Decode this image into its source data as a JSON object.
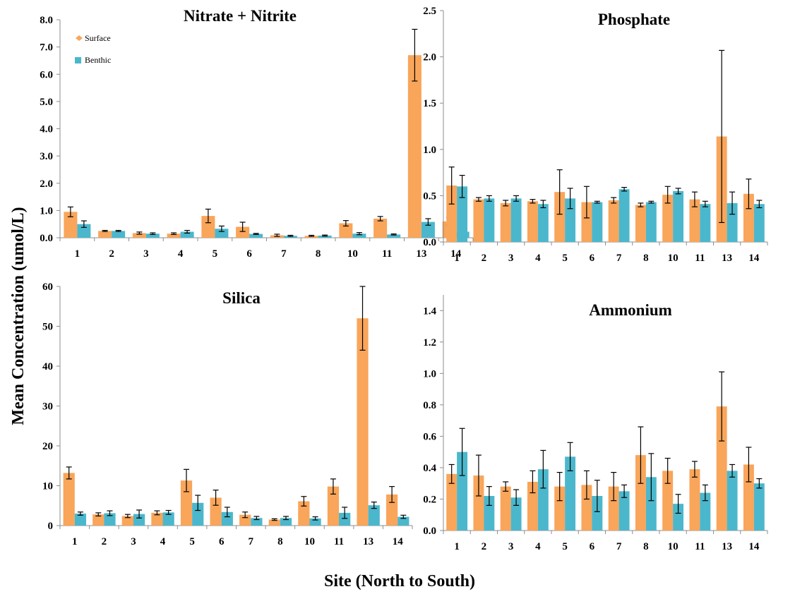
{
  "figure": {
    "ylabel": "Mean Concentration (umol/L)",
    "xlabel": "Site (North to South)"
  },
  "legend": {
    "items": [
      {
        "name": "Surface",
        "color": "#F9A55A",
        "marker": "diamond"
      },
      {
        "name": "Benthic",
        "color": "#4BB7CC",
        "marker": "square"
      }
    ]
  },
  "chart_data": [
    {
      "type": "bar",
      "title": "Nitrate + Nitrite",
      "categories": [
        "1",
        "2",
        "3",
        "4",
        "5",
        "6",
        "7",
        "8",
        "10",
        "11",
        "13",
        "14"
      ],
      "ylim": [
        0,
        8
      ],
      "yticks": [
        "0.0",
        "1.0",
        "2.0",
        "3.0",
        "4.0",
        "5.0",
        "6.0",
        "7.0",
        "8.0"
      ],
      "ytick_values": [
        0,
        1,
        2,
        3,
        4,
        5,
        6,
        7,
        8
      ],
      "legend": "top-left",
      "series": [
        {
          "name": "Surface",
          "color": "#F9A55A",
          "values": [
            0.95,
            0.25,
            0.17,
            0.15,
            0.8,
            0.4,
            0.09,
            0.07,
            0.53,
            0.7,
            6.7,
            0.6
          ],
          "errors": [
            0.18,
            0.02,
            0.04,
            0.03,
            0.25,
            0.17,
            0.04,
            0.02,
            0.1,
            0.08,
            0.95,
            0.14
          ]
        },
        {
          "name": "Benthic",
          "color": "#4BB7CC",
          "values": [
            0.5,
            0.25,
            0.15,
            0.22,
            0.33,
            0.14,
            0.07,
            0.08,
            0.15,
            0.12,
            0.58,
            0.22
          ],
          "errors": [
            0.12,
            0.02,
            0.03,
            0.05,
            0.1,
            0.02,
            0.02,
            0.02,
            0.04,
            0.02,
            0.12,
            0.05
          ]
        }
      ]
    },
    {
      "type": "bar",
      "title": "Phosphate",
      "categories": [
        "1",
        "2",
        "3",
        "4",
        "5",
        "6",
        "7",
        "8",
        "10",
        "11",
        "13",
        "14"
      ],
      "ylim": [
        0,
        2.5
      ],
      "yticks": [
        "0.0",
        "0.5",
        "1.0",
        "1.5",
        "2.0",
        "2.5"
      ],
      "ytick_values": [
        0,
        0.5,
        1.0,
        1.5,
        2.0,
        2.5
      ],
      "series": [
        {
          "name": "Surface",
          "color": "#F9A55A",
          "values": [
            0.61,
            0.46,
            0.42,
            0.44,
            0.54,
            0.43,
            0.45,
            0.4,
            0.51,
            0.46,
            1.14,
            0.52
          ],
          "errors": [
            0.2,
            0.02,
            0.03,
            0.02,
            0.24,
            0.17,
            0.03,
            0.02,
            0.09,
            0.08,
            0.93,
            0.16
          ]
        },
        {
          "name": "Benthic",
          "color": "#4BB7CC",
          "values": [
            0.6,
            0.47,
            0.47,
            0.41,
            0.47,
            0.43,
            0.57,
            0.43,
            0.55,
            0.41,
            0.42,
            0.41
          ],
          "errors": [
            0.12,
            0.03,
            0.03,
            0.04,
            0.11,
            0.01,
            0.02,
            0.01,
            0.03,
            0.03,
            0.12,
            0.04
          ]
        }
      ]
    },
    {
      "type": "bar",
      "title": "Silica",
      "categories": [
        "1",
        "2",
        "3",
        "4",
        "5",
        "6",
        "7",
        "8",
        "10",
        "11",
        "13",
        "14"
      ],
      "ylim": [
        0,
        60
      ],
      "yticks": [
        "0",
        "10",
        "20",
        "30",
        "40",
        "50",
        "60"
      ],
      "ytick_values": [
        0,
        10,
        20,
        30,
        40,
        50,
        60
      ],
      "series": [
        {
          "name": "Surface",
          "color": "#F9A55A",
          "values": [
            13.2,
            2.8,
            2.4,
            3.2,
            11.3,
            7.0,
            2.7,
            1.5,
            6.1,
            9.8,
            52.0,
            7.8
          ],
          "errors": [
            1.5,
            0.4,
            0.4,
            0.5,
            2.8,
            1.9,
            0.7,
            0.2,
            1.2,
            1.9,
            8.0,
            2.0
          ]
        },
        {
          "name": "Benthic",
          "color": "#4BB7CC",
          "values": [
            3.0,
            3.1,
            2.9,
            3.3,
            5.7,
            3.4,
            1.9,
            1.9,
            1.8,
            3.2,
            5.1,
            2.2
          ],
          "errors": [
            0.4,
            0.6,
            1.0,
            0.5,
            1.9,
            1.2,
            0.4,
            0.4,
            0.4,
            1.4,
            0.8,
            0.4
          ]
        }
      ]
    },
    {
      "type": "bar",
      "title": "Ammonium",
      "categories": [
        "1",
        "2",
        "3",
        "4",
        "5",
        "6",
        "7",
        "8",
        "10",
        "11",
        "13",
        "14"
      ],
      "ylim": [
        0,
        1.5
      ],
      "yticks": [
        "0.0",
        "0.2",
        "0.4",
        "0.6",
        "0.8",
        "1.0",
        "1.2",
        "1.4"
      ],
      "ytick_values": [
        0,
        0.2,
        0.4,
        0.6,
        0.8,
        1.0,
        1.2,
        1.4
      ],
      "series": [
        {
          "name": "Surface",
          "color": "#F9A55A",
          "values": [
            0.36,
            0.35,
            0.28,
            0.31,
            0.28,
            0.29,
            0.28,
            0.48,
            0.38,
            0.39,
            0.79,
            0.42
          ],
          "errors": [
            0.06,
            0.13,
            0.03,
            0.07,
            0.09,
            0.09,
            0.09,
            0.18,
            0.08,
            0.05,
            0.22,
            0.11
          ]
        },
        {
          "name": "Benthic",
          "color": "#4BB7CC",
          "values": [
            0.5,
            0.22,
            0.21,
            0.39,
            0.47,
            0.22,
            0.25,
            0.34,
            0.17,
            0.24,
            0.38,
            0.3
          ],
          "errors": [
            0.15,
            0.06,
            0.05,
            0.12,
            0.09,
            0.1,
            0.04,
            0.15,
            0.06,
            0.05,
            0.04,
            0.03
          ]
        }
      ]
    }
  ]
}
